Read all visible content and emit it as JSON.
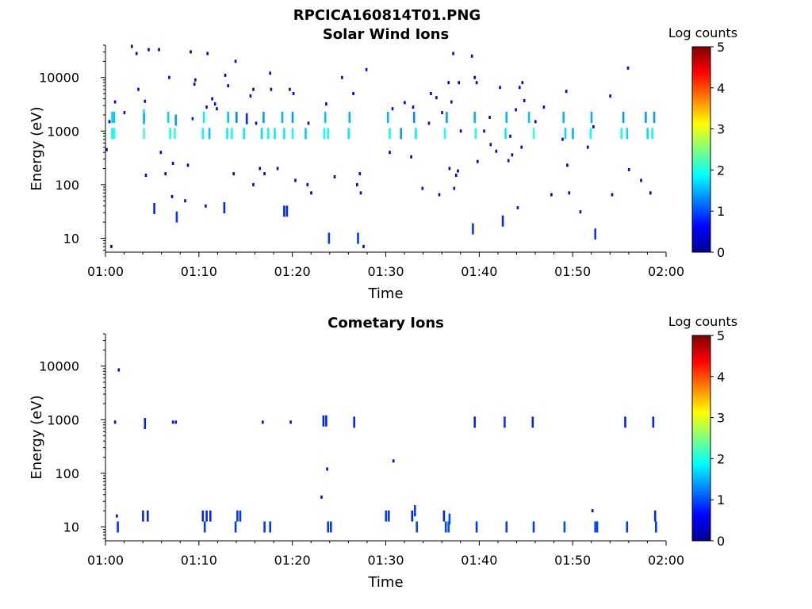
{
  "figure": {
    "title": "RPCICA160814T01.PNG"
  },
  "colors": {
    "background": "#ffffff",
    "axes": "#000000",
    "colormap": "jet"
  },
  "chart_data": [
    {
      "type": "heatmap",
      "title": "Solar Wind Ions",
      "xlabel": "Time",
      "ylabel": "Energy (eV)",
      "xlim": [
        "01:00",
        "02:00"
      ],
      "xticks": [
        "01:00",
        "01:10",
        "01:20",
        "01:30",
        "01:40",
        "01:50",
        "02:00"
      ],
      "yscale": "log",
      "ylim": [
        5.5,
        40000
      ],
      "yticks": [
        10,
        100,
        1000,
        10000
      ],
      "ytick_labels": [
        "10",
        "100",
        "1000",
        "10000"
      ],
      "colorbar": {
        "label": "Log counts",
        "min": 0,
        "max": 5,
        "ticks": [
          "0",
          "1",
          "2",
          "3",
          "4",
          "5"
        ]
      },
      "points": [
        [
          0.1,
          450,
          0.5
        ],
        [
          0.4,
          1500,
          0.6
        ],
        [
          0.6,
          7,
          0.4
        ],
        [
          0.7,
          1800,
          1.7
        ],
        [
          0.7,
          900,
          1.9
        ],
        [
          0.9,
          1800,
          1.6
        ],
        [
          0.9,
          900,
          2.0
        ],
        [
          1.0,
          3500,
          0.5
        ],
        [
          2.0,
          2200,
          0.5
        ],
        [
          2.8,
          38000,
          0.5
        ],
        [
          3.3,
          28000,
          0.5
        ],
        [
          3.5,
          6000,
          0.6
        ],
        [
          4.1,
          2000,
          1.8
        ],
        [
          4.1,
          1700,
          1.5
        ],
        [
          4.1,
          900,
          2.2
        ],
        [
          4.2,
          3600,
          0.6
        ],
        [
          4.3,
          150,
          0.4
        ],
        [
          4.6,
          33000,
          0.4
        ],
        [
          5.2,
          36,
          0.8
        ],
        [
          5.7,
          33000,
          0.5
        ],
        [
          5.9,
          400,
          0.5
        ],
        [
          6.4,
          160,
          0.4
        ],
        [
          6.7,
          1800,
          1.7
        ],
        [
          6.8,
          10000,
          0.6
        ],
        [
          6.9,
          900,
          2.0
        ],
        [
          7.1,
          60,
          0.4
        ],
        [
          7.2,
          250,
          0.4
        ],
        [
          7.4,
          900,
          2.1
        ],
        [
          7.5,
          1600,
          1.4
        ],
        [
          7.6,
          25,
          0.9
        ],
        [
          8.5,
          50,
          0.5
        ],
        [
          8.8,
          230,
          0.4
        ],
        [
          9.1,
          30000,
          0.5
        ],
        [
          9.3,
          1700,
          0.7
        ],
        [
          9.5,
          7500,
          0.6
        ],
        [
          9.6,
          9000,
          0.4
        ],
        [
          10.4,
          900,
          1.9
        ],
        [
          10.5,
          1800,
          1.8
        ],
        [
          10.7,
          40,
          0.7
        ],
        [
          10.8,
          2800,
          0.5
        ],
        [
          10.9,
          28000,
          0.4
        ],
        [
          11.1,
          900,
          1.6
        ],
        [
          11.4,
          4000,
          0.5
        ],
        [
          11.7,
          3200,
          0.5
        ],
        [
          11.9,
          2600,
          0.5
        ],
        [
          12.7,
          37,
          0.8
        ],
        [
          12.8,
          11000,
          0.6
        ],
        [
          13.0,
          900,
          1.8
        ],
        [
          13.1,
          7000,
          0.5
        ],
        [
          13.1,
          1800,
          1.6
        ],
        [
          13.5,
          900,
          1.9
        ],
        [
          13.7,
          160,
          0.5
        ],
        [
          13.9,
          20000,
          0.5
        ],
        [
          14.0,
          1800,
          1.3
        ],
        [
          14.8,
          900,
          1.8
        ],
        [
          15.1,
          1700,
          0.8
        ],
        [
          15.5,
          4500,
          0.5
        ],
        [
          15.8,
          100,
          0.5
        ],
        [
          15.8,
          6000,
          0.5
        ],
        [
          16.1,
          1400,
          0.6
        ],
        [
          16.5,
          200,
          0.4
        ],
        [
          16.7,
          900,
          1.7
        ],
        [
          16.9,
          1800,
          1.4
        ],
        [
          17.0,
          160,
          0.4
        ],
        [
          17.4,
          900,
          1.9
        ],
        [
          17.6,
          12000,
          0.5
        ],
        [
          17.7,
          6000,
          0.5
        ],
        [
          18.1,
          900,
          1.8
        ],
        [
          18.4,
          200,
          0.5
        ],
        [
          18.9,
          1800,
          1.5
        ],
        [
          19.1,
          900,
          1.8
        ],
        [
          19.1,
          32,
          0.8
        ],
        [
          19.4,
          32,
          0.8
        ],
        [
          19.7,
          6000,
          0.6
        ],
        [
          20.0,
          1800,
          1.4
        ],
        [
          20.0,
          900,
          1.9
        ],
        [
          20.1,
          5000,
          0.5
        ],
        [
          20.3,
          120,
          0.4
        ],
        [
          21.4,
          900,
          1.6
        ],
        [
          21.6,
          100,
          0.4
        ],
        [
          21.7,
          1400,
          0.5
        ],
        [
          22.0,
          70,
          0.4
        ],
        [
          23.4,
          900,
          1.9
        ],
        [
          23.5,
          1800,
          1.6
        ],
        [
          23.6,
          3200,
          0.5
        ],
        [
          23.8,
          900,
          2.0
        ],
        [
          23.9,
          10,
          0.9
        ],
        [
          24.5,
          140,
          0.4
        ],
        [
          25.3,
          10000,
          0.5
        ],
        [
          26.0,
          900,
          1.8
        ],
        [
          26.1,
          1800,
          1.5
        ],
        [
          26.5,
          5000,
          0.5
        ],
        [
          26.9,
          100,
          0.4
        ],
        [
          27.0,
          10,
          0.9
        ],
        [
          27.2,
          160,
          0.5
        ],
        [
          27.3,
          70,
          0.4
        ],
        [
          27.6,
          7,
          0.5
        ],
        [
          27.9,
          14000,
          0.5
        ],
        [
          30.2,
          1800,
          1.5
        ],
        [
          30.4,
          900,
          1.9
        ],
        [
          30.4,
          400,
          0.4
        ],
        [
          30.7,
          2600,
          0.5
        ],
        [
          31.6,
          900,
          1.4
        ],
        [
          32.0,
          3400,
          0.5
        ],
        [
          32.7,
          330,
          0.4
        ],
        [
          32.9,
          2800,
          0.5
        ],
        [
          33.0,
          1800,
          1.3
        ],
        [
          33.2,
          900,
          1.8
        ],
        [
          33.9,
          85,
          0.6
        ],
        [
          34.6,
          1400,
          0.6
        ],
        [
          34.8,
          5000,
          0.5
        ],
        [
          35.4,
          4200,
          0.5
        ],
        [
          35.7,
          65,
          0.4
        ],
        [
          36.0,
          2200,
          0.5
        ],
        [
          36.3,
          900,
          2.0
        ],
        [
          36.5,
          1800,
          1.4
        ],
        [
          36.7,
          8000,
          0.5
        ],
        [
          36.8,
          200,
          0.5
        ],
        [
          37.0,
          3500,
          0.5
        ],
        [
          37.2,
          28000,
          0.5
        ],
        [
          37.3,
          85,
          0.7
        ],
        [
          37.5,
          150,
          0.4
        ],
        [
          37.7,
          180,
          0.4
        ],
        [
          37.8,
          8000,
          0.5
        ],
        [
          38.0,
          1000,
          0.6
        ],
        [
          39.2,
          25000,
          0.5
        ],
        [
          39.3,
          15,
          0.9
        ],
        [
          39.5,
          10000,
          0.5
        ],
        [
          39.5,
          1800,
          1.5
        ],
        [
          39.6,
          900,
          2.0
        ],
        [
          39.7,
          8000,
          0.5
        ],
        [
          39.8,
          270,
          0.4
        ],
        [
          40.5,
          1000,
          0.6
        ],
        [
          41.1,
          1800,
          0.6
        ],
        [
          41.2,
          560,
          0.4
        ],
        [
          41.8,
          420,
          0.4
        ],
        [
          42.2,
          6500,
          0.6
        ],
        [
          42.5,
          21,
          0.8
        ],
        [
          42.8,
          900,
          1.8
        ],
        [
          42.9,
          1800,
          1.5
        ],
        [
          43.1,
          280,
          0.5
        ],
        [
          43.3,
          800,
          0.6
        ],
        [
          43.5,
          360,
          0.4
        ],
        [
          43.9,
          2500,
          0.5
        ],
        [
          44.1,
          37,
          0.7
        ],
        [
          44.3,
          6500,
          0.5
        ],
        [
          44.5,
          500,
          0.4
        ],
        [
          44.6,
          8000,
          0.5
        ],
        [
          44.8,
          3700,
          0.5
        ],
        [
          45.3,
          1800,
          1.6
        ],
        [
          45.8,
          900,
          2.1
        ],
        [
          46.0,
          1500,
          0.5
        ],
        [
          46.9,
          2800,
          0.5
        ],
        [
          47.7,
          65,
          0.4
        ],
        [
          48.9,
          700,
          0.6
        ],
        [
          49.0,
          1800,
          1.5
        ],
        [
          49.2,
          900,
          1.7
        ],
        [
          49.3,
          5500,
          0.6
        ],
        [
          49.4,
          230,
          0.4
        ],
        [
          49.6,
          70,
          0.4
        ],
        [
          50.0,
          900,
          1.5
        ],
        [
          50.8,
          31,
          0.7
        ],
        [
          51.6,
          500,
          0.5
        ],
        [
          51.9,
          900,
          1.9
        ],
        [
          52.0,
          1800,
          1.5
        ],
        [
          52.2,
          1200,
          0.5
        ],
        [
          52.4,
          12,
          0.9
        ],
        [
          54.0,
          4500,
          0.5
        ],
        [
          54.2,
          65,
          0.4
        ],
        [
          55.2,
          900,
          2.0
        ],
        [
          55.4,
          1800,
          1.4
        ],
        [
          55.8,
          900,
          1.7
        ],
        [
          55.9,
          15000,
          0.5
        ],
        [
          56.0,
          190,
          0.4
        ],
        [
          57.3,
          120,
          0.4
        ],
        [
          57.8,
          1800,
          1.4
        ],
        [
          58.0,
          900,
          1.7
        ],
        [
          58.3,
          70,
          0.4
        ],
        [
          58.5,
          900,
          1.9
        ],
        [
          58.7,
          1800,
          1.4
        ]
      ]
    },
    {
      "type": "heatmap",
      "title": "Cometary Ions",
      "xlabel": "Time",
      "ylabel": "Energy (eV)",
      "xlim": [
        "01:00",
        "02:00"
      ],
      "xticks": [
        "01:00",
        "01:10",
        "01:20",
        "01:30",
        "01:40",
        "01:50",
        "02:00"
      ],
      "yscale": "log",
      "ylim": [
        5.5,
        40000
      ],
      "yticks": [
        10,
        100,
        1000,
        10000
      ],
      "ytick_labels": [
        "10",
        "100",
        "1000",
        "10000"
      ],
      "colorbar": {
        "label": "Log counts",
        "min": 0,
        "max": 5,
        "ticks": [
          "0",
          "1",
          "2",
          "3",
          "4",
          "5"
        ]
      },
      "points": [
        [
          1.0,
          900,
          0.6
        ],
        [
          1.2,
          16,
          0.7
        ],
        [
          1.3,
          10,
          0.9
        ],
        [
          1.4,
          8500,
          0.5
        ],
        [
          4.0,
          16,
          0.8
        ],
        [
          4.2,
          850,
          0.8
        ],
        [
          4.5,
          16,
          0.8
        ],
        [
          7.2,
          900,
          0.7
        ],
        [
          7.5,
          900,
          0.7
        ],
        [
          10.4,
          16,
          0.8
        ],
        [
          10.6,
          10,
          0.9
        ],
        [
          10.8,
          16,
          0.8
        ],
        [
          11.2,
          16,
          0.8
        ],
        [
          13.9,
          10,
          0.9
        ],
        [
          14.1,
          16,
          0.9
        ],
        [
          14.4,
          16,
          0.9
        ],
        [
          16.8,
          900,
          0.6
        ],
        [
          17.0,
          10,
          0.9
        ],
        [
          17.6,
          10,
          0.9
        ],
        [
          19.8,
          900,
          0.6
        ],
        [
          23.1,
          36,
          0.6
        ],
        [
          23.3,
          950,
          0.8
        ],
        [
          23.6,
          950,
          0.8
        ],
        [
          23.7,
          120,
          0.6
        ],
        [
          23.8,
          10,
          0.9
        ],
        [
          24.1,
          10,
          0.9
        ],
        [
          26.6,
          900,
          0.8
        ],
        [
          30.0,
          16,
          0.9
        ],
        [
          30.3,
          16,
          0.9
        ],
        [
          30.8,
          170,
          0.6
        ],
        [
          32.8,
          16,
          0.8
        ],
        [
          33.1,
          20,
          0.9
        ],
        [
          33.3,
          10,
          1.0
        ],
        [
          36.2,
          16,
          0.8
        ],
        [
          36.4,
          10,
          1.0
        ],
        [
          36.7,
          10,
          1.0
        ],
        [
          36.8,
          14,
          1.0
        ],
        [
          39.5,
          900,
          0.8
        ],
        [
          39.7,
          10,
          0.9
        ],
        [
          42.7,
          900,
          0.9
        ],
        [
          42.9,
          10,
          0.9
        ],
        [
          45.7,
          900,
          0.8
        ],
        [
          45.8,
          10,
          0.9
        ],
        [
          49.1,
          10,
          1.0
        ],
        [
          52.1,
          20,
          0.7
        ],
        [
          52.4,
          10,
          1.0
        ],
        [
          52.6,
          10,
          1.0
        ],
        [
          55.6,
          900,
          0.8
        ],
        [
          55.8,
          10,
          0.9
        ],
        [
          58.6,
          900,
          0.8
        ],
        [
          58.8,
          16,
          0.8
        ],
        [
          58.9,
          10,
          0.9
        ]
      ]
    }
  ]
}
